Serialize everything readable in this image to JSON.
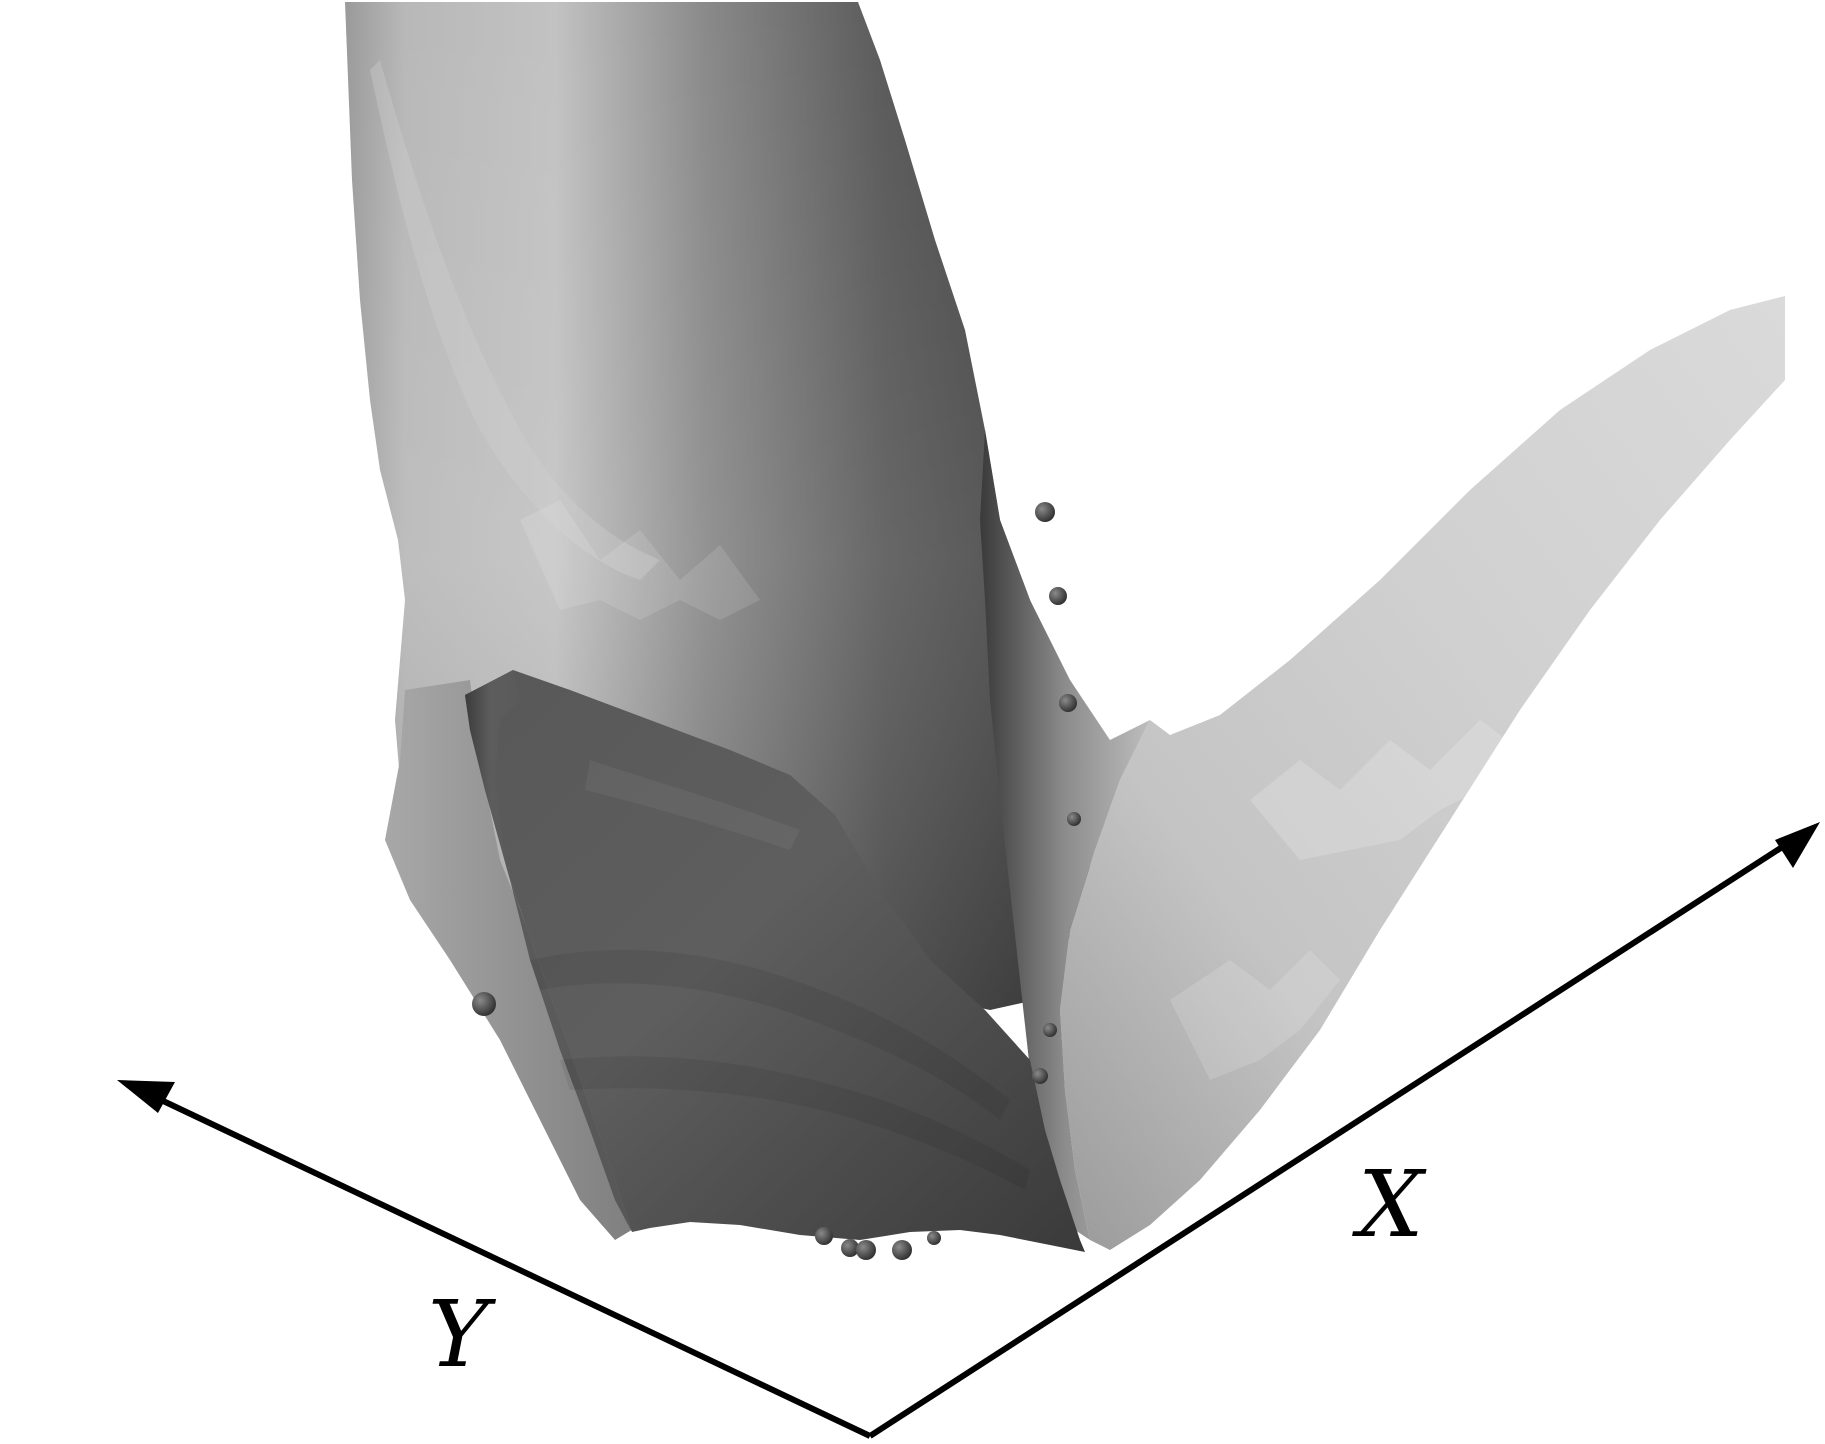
{
  "figure": {
    "axes": {
      "x_label": "X",
      "y_label": "Y",
      "line_color": "#000000"
    },
    "surface": {
      "shading": "grayscale",
      "light_tone": "#d2d2d2",
      "mid_tone": "#8e8e8e",
      "dark_tone": "#3f3f3f"
    },
    "markers": {
      "color": "#3a3a3a",
      "shape": "sphere"
    }
  }
}
